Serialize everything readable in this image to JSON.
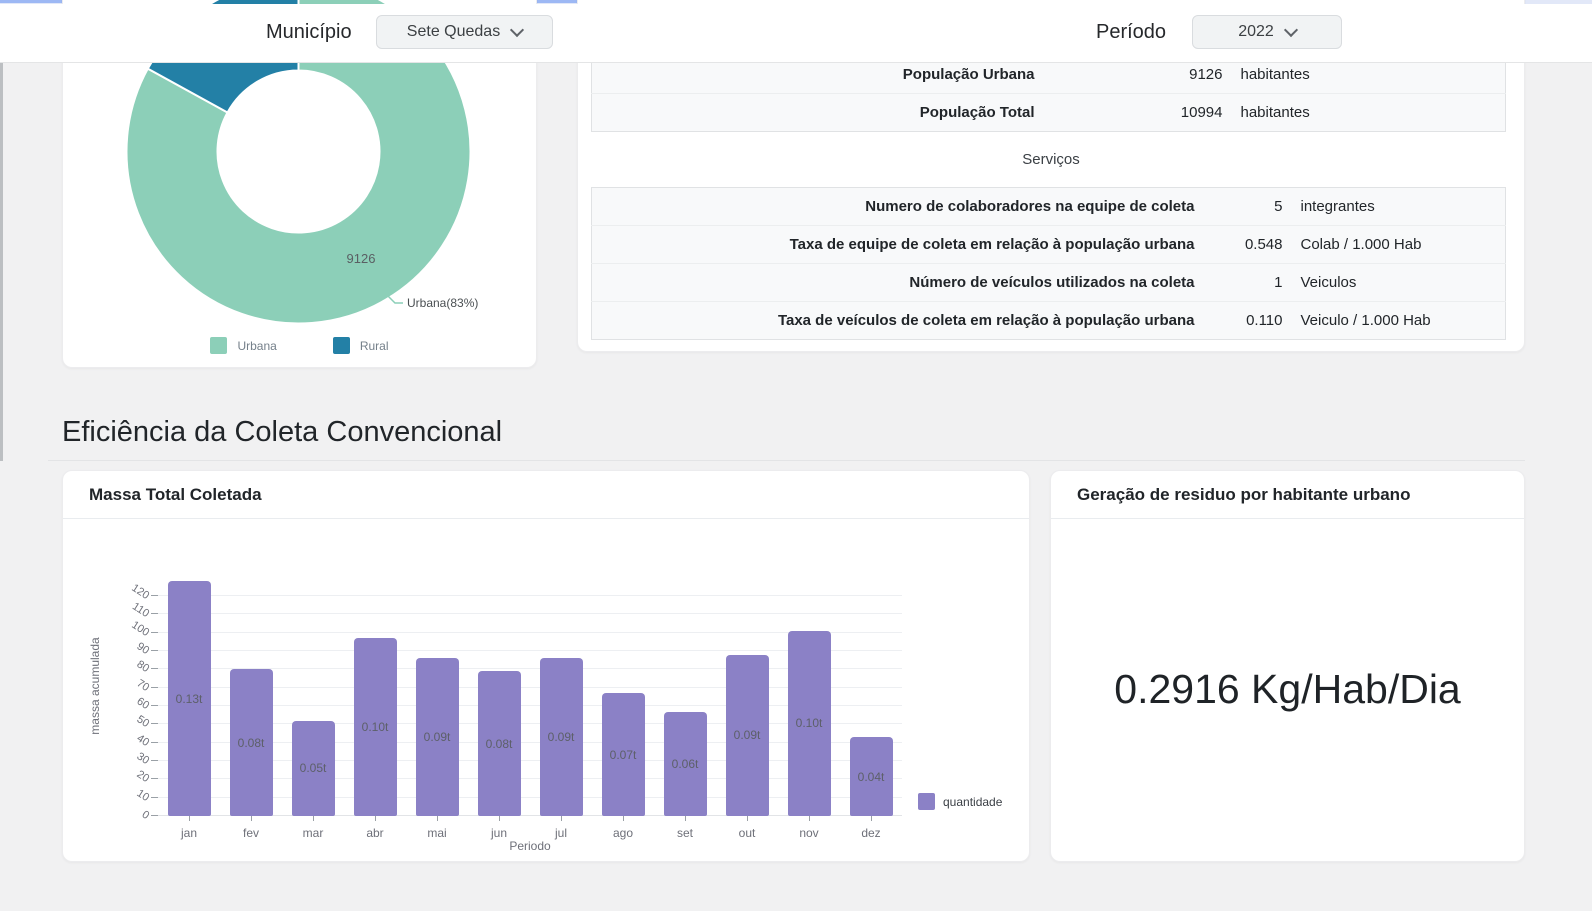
{
  "header": {
    "municipio_label": "Município",
    "municipio_value": "Sete Quedas",
    "periodo_label": "Período",
    "periodo_value": "2022"
  },
  "overview_card": {
    "population_rows": [
      {
        "label": "População Urbana",
        "value": "9126",
        "unit": "habitantes"
      },
      {
        "label": "População Total",
        "value": "10994",
        "unit": "habitantes"
      }
    ],
    "services_title": "Serviços",
    "services_rows": [
      {
        "label": "Numero de colaboradores na equipe de coleta",
        "value": "5",
        "unit": "integrantes"
      },
      {
        "label": "Taxa de equipe de coleta em relação à população urbana",
        "value": "0.548",
        "unit": "Colab / 1.000 Hab"
      },
      {
        "label": "Número de veículos utilizados na coleta",
        "value": "1",
        "unit": "Veiculos"
      },
      {
        "label": "Taxa de veículos de coleta em relação à população urbana",
        "value": "0.110",
        "unit": "Veiculo / 1.000 Hab"
      }
    ]
  },
  "section": {
    "title": "Eficiência da Coleta Convencional"
  },
  "mass_card": {
    "title": "Massa Total Coletada"
  },
  "generation_card": {
    "title": "Geração de residuo por habitante urbano",
    "value": "0.2916 Kg/Hab/Dia"
  },
  "chart_data": [
    {
      "type": "pie",
      "labels": [
        "Urbana",
        "Rural"
      ],
      "percentages": [
        83,
        17
      ],
      "shown_value": "9126",
      "annotation": "Urbana(83%)",
      "colors": [
        "#8CCFB8",
        "#2380A6"
      ],
      "legend": [
        "Urbana",
        "Rural"
      ],
      "legend_position": "bottom",
      "donut": true
    },
    {
      "type": "bar",
      "title": "Massa Total Coletada",
      "categories": [
        "jan",
        "fev",
        "mar",
        "abr",
        "mai",
        "jun",
        "jul",
        "ago",
        "set",
        "out",
        "nov",
        "dez"
      ],
      "series": [
        {
          "name": "quantidade",
          "values": [
            128,
            80,
            52,
            97,
            86,
            79,
            86,
            67,
            57,
            88,
            101,
            43
          ],
          "bar_labels": [
            "0.13t",
            "0.08t",
            "0.05t",
            "0.10t",
            "0.09t",
            "0.08t",
            "0.09t",
            "0.07t",
            "0.06t",
            "0.09t",
            "0.10t",
            "0.04t"
          ]
        }
      ],
      "xlabel": "Periodo",
      "ylabel": "massa acumulada",
      "ylim": [
        0,
        130
      ],
      "yticks": [
        0,
        10,
        20,
        30,
        40,
        50,
        60,
        70,
        80,
        90,
        100,
        110,
        120
      ],
      "grid": true,
      "bar_color": "#8B81C6",
      "legend": [
        "quantidade"
      ],
      "legend_position": "bottom-right"
    }
  ]
}
